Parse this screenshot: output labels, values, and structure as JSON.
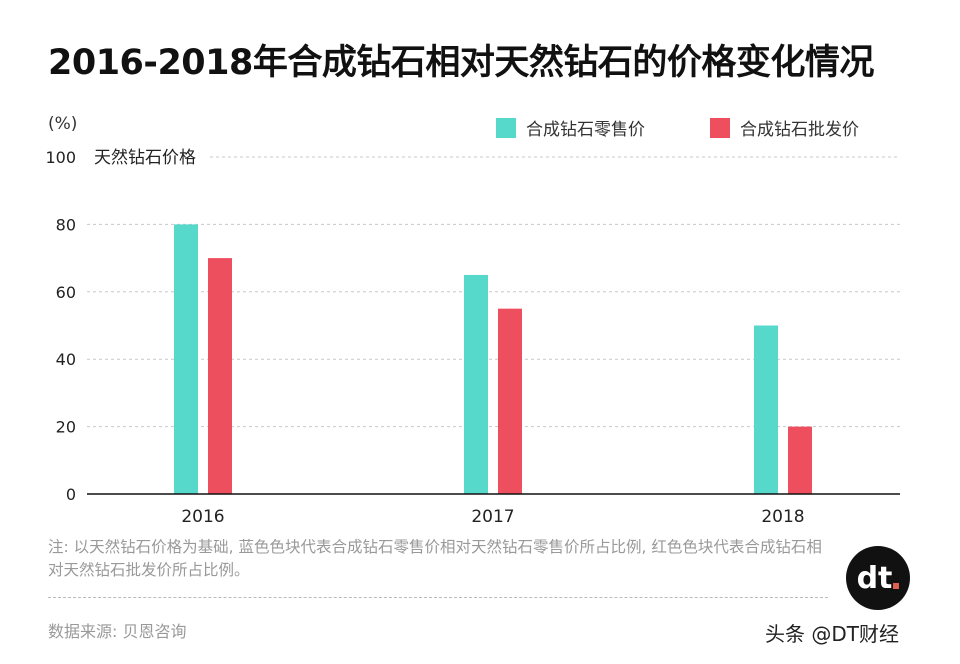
{
  "title": "2016-2018年合成钻石相对天然钻石的价格变化情况",
  "unit_label": "(%)",
  "reference_label": "天然钻石价格",
  "note": "注: 以天然钻石价格为基础, 蓝色色块代表合成钻石零售价相对天然钻石零售价所占比例, 红色色块代表合成钻石相对天然钻石批发价所占比例。",
  "source": "数据来源: 贝恩咨询",
  "logo_text": "dt",
  "credit": "头条 @DT财经",
  "chart_data": {
    "type": "bar",
    "title": "2016-2018年合成钻石相对天然钻石的价格变化情况",
    "ylabel": "(%)",
    "categories": [
      "2016",
      "2017",
      "2018"
    ],
    "ylim": [
      0,
      100
    ],
    "yticks": [
      0,
      20,
      40,
      60,
      80,
      100
    ],
    "grid": true,
    "legend_position": "top-right",
    "series": [
      {
        "name": "合成钻石零售价",
        "color": "#56d8cb",
        "values": [
          80,
          65,
          50
        ]
      },
      {
        "name": "合成钻石批发价",
        "color": "#ee4f5e",
        "values": [
          70,
          55,
          20
        ]
      }
    ]
  }
}
